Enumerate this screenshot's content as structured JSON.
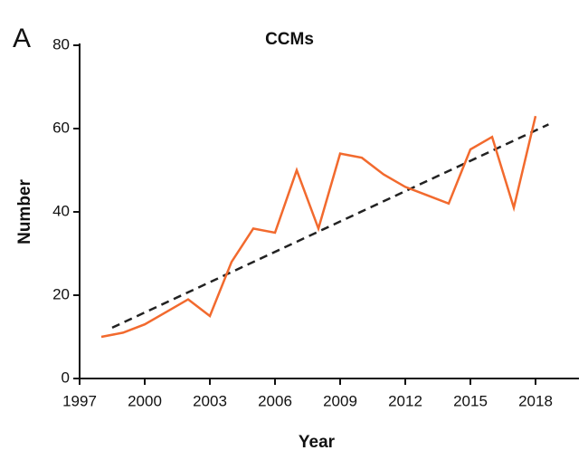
{
  "panel_label": "A",
  "chart_data": {
    "type": "line",
    "title": "CCMs",
    "x_label": "Year",
    "y_label": "Number",
    "x": [
      1998,
      1999,
      2000,
      2001,
      2002,
      2003,
      2004,
      2005,
      2006,
      2007,
      2008,
      2009,
      2010,
      2011,
      2012,
      2013,
      2014,
      2015,
      2016,
      2017,
      2018
    ],
    "series": [
      {
        "color": "#f26a2e",
        "values": [
          10,
          11,
          13,
          16,
          19,
          15,
          28,
          36,
          35,
          50,
          36,
          54,
          53,
          49,
          46,
          44,
          42,
          55,
          58,
          41,
          63
        ]
      }
    ],
    "trendline": {
      "x": [
        1998.5,
        2018.6
      ],
      "values": [
        12.2,
        61
      ],
      "color": "#222222",
      "dashed": true
    },
    "xlim": [
      1997,
      2020
    ],
    "xticks": [
      1997,
      2000,
      2003,
      2006,
      2009,
      2012,
      2015,
      2018
    ],
    "ylim": [
      0,
      80
    ],
    "yticks": [
      0,
      20,
      40,
      60,
      80
    ],
    "grid": false
  }
}
